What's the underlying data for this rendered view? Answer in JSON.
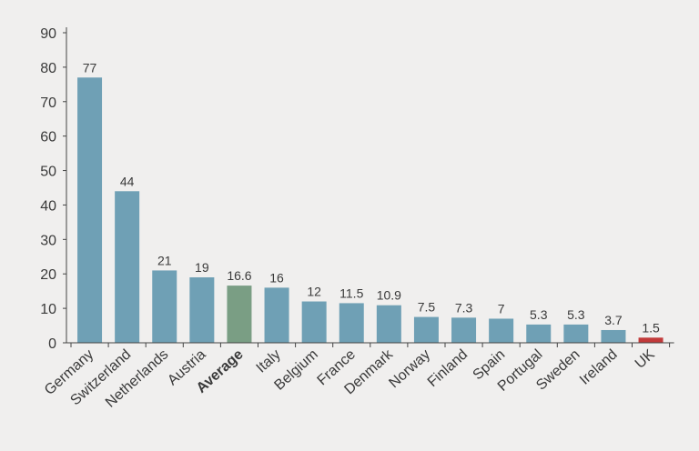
{
  "chart_data": {
    "type": "bar",
    "title": "",
    "xlabel": "",
    "ylabel": "",
    "ylim": [
      0,
      90
    ],
    "yticks": [
      "0",
      "10",
      "20",
      "30",
      "40",
      "50",
      "60",
      "70",
      "80",
      "90"
    ],
    "categories": [
      "Germany",
      "Switzerland",
      "Netherlands",
      "Austria",
      "Average",
      "Italy",
      "Belgium",
      "France",
      "Denmark",
      "Norway",
      "Finland",
      "Spain",
      "Portugal",
      "Sweden",
      "Ireland",
      "UK"
    ],
    "values": [
      77,
      44,
      21,
      19,
      16.6,
      16,
      12,
      11.5,
      10.9,
      7.5,
      7.3,
      7,
      5.3,
      5.3,
      3.7,
      1.5
    ],
    "value_labels": [
      "77",
      "44",
      "21",
      "19",
      "16.6",
      "16",
      "12",
      "11.5",
      "10.9",
      "7.5",
      "7.3",
      "7",
      "5.3",
      "5.3",
      "3.7",
      "1.5"
    ],
    "highlight": {
      "Average": "#7a9e84",
      "UK": "#c23a3a"
    },
    "bold_categories": [
      "Average"
    ],
    "colors": {
      "default_bar": "#6fa0b5",
      "axis": "#444444",
      "background": "#f0efee"
    }
  }
}
